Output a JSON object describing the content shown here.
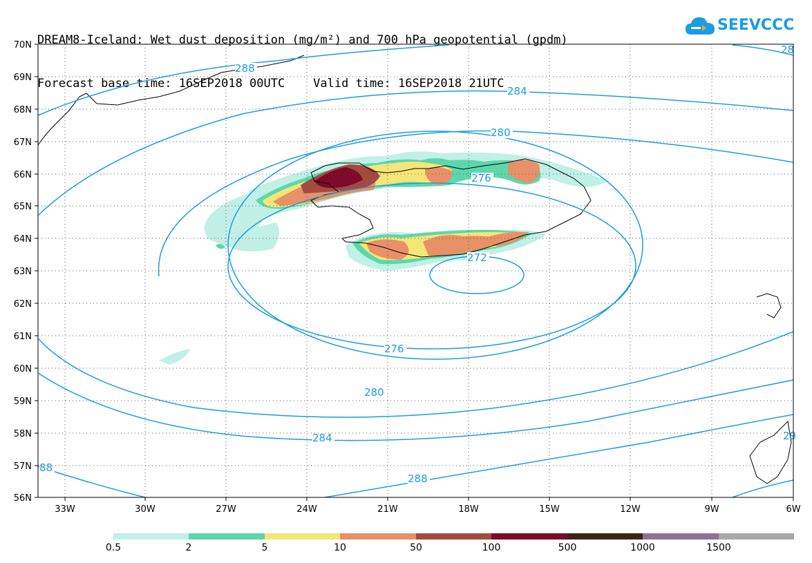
{
  "title": {
    "line1": "DREAM8-Iceland: Wet dust deposition (mg/m²) and 700 hPa geopotential (gpdm)",
    "line2": "Forecast base time: 16SEP2018 00UTC    Valid time: 16SEP2018 21UTC"
  },
  "logo": {
    "text": "SEEVCCC",
    "icon": "cloud-icon",
    "color": "#1a9de2"
  },
  "map": {
    "lat_labels": [
      "70N",
      "69N",
      "68N",
      "67N",
      "66N",
      "65N",
      "64N",
      "63N",
      "62N",
      "61N",
      "60N",
      "59N",
      "58N",
      "57N",
      "56N"
    ],
    "lon_labels": [
      "33W",
      "30W",
      "27W",
      "24W",
      "21W",
      "18W",
      "15W",
      "12W",
      "9W",
      "6W"
    ],
    "lat_range": [
      56,
      70
    ],
    "lon_range": [
      -34,
      -6
    ],
    "contour_color": "#1a9de2",
    "contour_labels": [
      "288",
      "284",
      "280",
      "276",
      "272",
      "276",
      "280",
      "284",
      "288",
      "88",
      "28",
      "29"
    ]
  },
  "colorbar": {
    "labels": [
      "0.5",
      "2",
      "5",
      "10",
      "50",
      "100",
      "500",
      "1000",
      "1500"
    ],
    "colors": [
      "#c0f0e6",
      "#5cd7ac",
      "#f5e678",
      "#e89068",
      "#a44a40",
      "#7c0a28",
      "#3c2414",
      "#907098",
      "#a8a8a8"
    ]
  }
}
